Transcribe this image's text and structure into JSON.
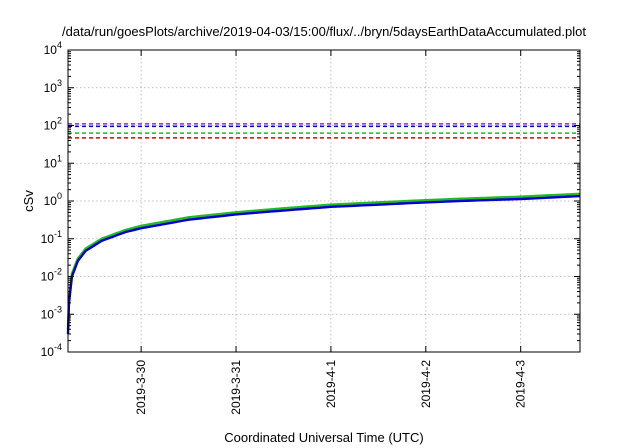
{
  "chart_data": {
    "type": "line",
    "title": "/data/run/goesPlots/archive/2019-04-03/15:00/flux/../bryn/5daysEarthDataAccumulated.plot",
    "xlabel": "Coordinated Universal Time (UTC)",
    "ylabel": "cSv",
    "x_is_date": true,
    "xlim": [
      "2019-03-29T05:30",
      "2019-04-03T15:00"
    ],
    "ylim": [
      0.0001,
      10000
    ],
    "y_scale": "log",
    "grid": true,
    "legend": "none",
    "x_ticks": [
      "2019-3-30",
      "2019-3-31",
      "2019-4-1",
      "2019-4-2",
      "2019-4-3"
    ],
    "y_ticks": [
      {
        "base": "10",
        "exp": "-4"
      },
      {
        "base": "10",
        "exp": "-3"
      },
      {
        "base": "10",
        "exp": "-2"
      },
      {
        "base": "10",
        "exp": "-1"
      },
      {
        "base": "10",
        "exp": "0"
      },
      {
        "base": "10",
        "exp": "1"
      },
      {
        "base": "10",
        "exp": "2"
      },
      {
        "base": "10",
        "exp": "3"
      },
      {
        "base": "10",
        "exp": "4"
      }
    ],
    "thresholds": [
      {
        "color": "#8a2be2",
        "value": 110
      },
      {
        "color": "#0000cc",
        "value": 95
      },
      {
        "color": "#22bb22",
        "value": 63
      },
      {
        "color": "#dd0000",
        "value": 47
      }
    ],
    "series": [
      {
        "color": "#22bb22",
        "x": [
          "2019-03-29T05:30",
          "2019-03-29T05:45",
          "2019-03-29T06:30",
          "2019-03-29T08:00",
          "2019-03-29T10:00",
          "2019-03-29T14:00",
          "2019-03-29T20:00",
          "2019-03-30T00:00",
          "2019-03-30T12:00",
          "2019-03-31T00:00",
          "2019-03-31T12:00",
          "2019-04-01T00:00",
          "2019-04-01T12:00",
          "2019-04-02T00:00",
          "2019-04-02T12:00",
          "2019-04-03T00:00",
          "2019-04-03T15:00"
        ],
        "values": [
          0.0004,
          0.0025,
          0.012,
          0.03,
          0.055,
          0.1,
          0.17,
          0.22,
          0.37,
          0.5,
          0.64,
          0.8,
          0.92,
          1.05,
          1.18,
          1.3,
          1.55
        ]
      },
      {
        "color": "#0000cc",
        "x": [
          "2019-03-29T05:30",
          "2019-03-29T05:45",
          "2019-03-29T06:30",
          "2019-03-29T08:00",
          "2019-03-29T10:00",
          "2019-03-29T14:00",
          "2019-03-29T20:00",
          "2019-03-30T00:00",
          "2019-03-30T12:00",
          "2019-03-31T00:00",
          "2019-03-31T12:00",
          "2019-04-01T00:00",
          "2019-04-01T12:00",
          "2019-04-02T00:00",
          "2019-04-02T12:00",
          "2019-04-03T00:00",
          "2019-04-03T15:00"
        ],
        "values": [
          0.0003,
          0.002,
          0.01,
          0.026,
          0.048,
          0.088,
          0.15,
          0.19,
          0.32,
          0.44,
          0.56,
          0.7,
          0.8,
          0.92,
          1.03,
          1.13,
          1.35
        ]
      }
    ]
  }
}
